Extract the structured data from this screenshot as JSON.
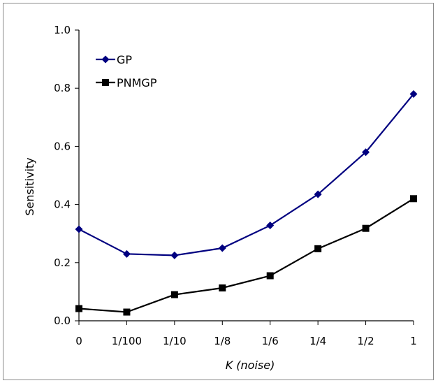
{
  "chart_data": {
    "type": "line",
    "categories": [
      "0",
      "1/100",
      "1/10",
      "1/8",
      "1/6",
      "1/4",
      "1/2",
      "1"
    ],
    "series": [
      {
        "name": "GP",
        "values": [
          0.315,
          0.23,
          0.225,
          0.25,
          0.328,
          0.435,
          0.58,
          0.78
        ],
        "color": "#000080",
        "marker": "diamond"
      },
      {
        "name": "PNMGP",
        "values": [
          0.042,
          0.03,
          0.09,
          0.113,
          0.155,
          0.248,
          0.318,
          0.42
        ],
        "color": "#000000",
        "marker": "square"
      }
    ],
    "ylim": [
      0,
      1
    ],
    "yticks": [
      "0.0",
      "0.2",
      "0.4",
      "0.6",
      "0.8",
      "1.0"
    ],
    "ylabel": "Sensitivity",
    "xlabel_main": "K",
    "xlabel_suffix": " (noise)",
    "legend": "top-left",
    "grid": false
  }
}
